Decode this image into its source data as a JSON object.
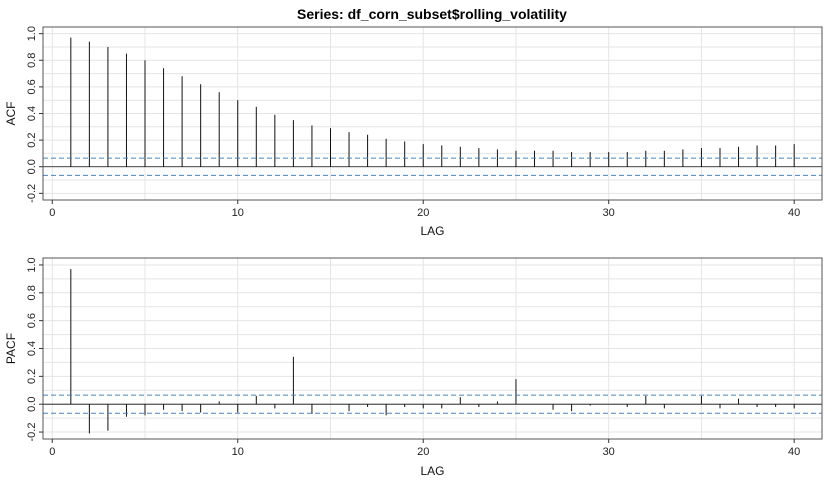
{
  "title": "Series:  df_corn_subset$rolling_volatility",
  "colors": {
    "ci": "#4a84bb",
    "spike": "#111111",
    "grid": "#e4e4e4"
  },
  "chart_data": [
    {
      "type": "bar",
      "id": "acf",
      "xlabel": "LAG",
      "ylabel": "ACF",
      "xlim": [
        -0.5,
        41.5
      ],
      "ylim": [
        -0.25,
        1.05
      ],
      "xticks": [
        0,
        10,
        20,
        30,
        40
      ],
      "yticks": [
        -0.2,
        0.0,
        0.2,
        0.4,
        0.6,
        0.8,
        1.0
      ],
      "ytick_labels": [
        "-0.2",
        "0.0",
        "0.2",
        "0.4",
        "0.6",
        "0.8",
        "1.0"
      ],
      "ci": 0.065,
      "lags": [
        1,
        2,
        3,
        4,
        5,
        6,
        7,
        8,
        9,
        10,
        11,
        12,
        13,
        14,
        15,
        16,
        17,
        18,
        19,
        20,
        21,
        22,
        23,
        24,
        25,
        26,
        27,
        28,
        29,
        30,
        31,
        32,
        33,
        34,
        35,
        36,
        37,
        38,
        39,
        40
      ],
      "values": [
        0.97,
        0.94,
        0.9,
        0.85,
        0.8,
        0.74,
        0.68,
        0.62,
        0.56,
        0.5,
        0.45,
        0.39,
        0.35,
        0.31,
        0.29,
        0.26,
        0.24,
        0.21,
        0.19,
        0.17,
        0.16,
        0.15,
        0.14,
        0.13,
        0.12,
        0.12,
        0.12,
        0.11,
        0.11,
        0.11,
        0.11,
        0.12,
        0.12,
        0.13,
        0.14,
        0.14,
        0.15,
        0.16,
        0.16,
        0.17
      ]
    },
    {
      "type": "bar",
      "id": "pacf",
      "xlabel": "LAG",
      "ylabel": "PACF",
      "xlim": [
        -0.5,
        41.5
      ],
      "ylim": [
        -0.25,
        1.05
      ],
      "xticks": [
        0,
        10,
        20,
        30,
        40
      ],
      "yticks": [
        -0.2,
        0.0,
        0.2,
        0.4,
        0.6,
        0.8,
        1.0
      ],
      "ytick_labels": [
        "-0.2",
        "0.0",
        "0.2",
        "0.4",
        "0.6",
        "0.8",
        "1.0"
      ],
      "ci": 0.065,
      "lags": [
        1,
        2,
        3,
        4,
        5,
        6,
        7,
        8,
        9,
        10,
        11,
        12,
        13,
        14,
        15,
        16,
        17,
        18,
        19,
        20,
        21,
        22,
        23,
        24,
        25,
        26,
        27,
        28,
        29,
        30,
        31,
        32,
        33,
        34,
        35,
        36,
        37,
        38,
        39,
        40
      ],
      "values": [
        0.97,
        -0.21,
        -0.19,
        -0.09,
        -0.08,
        -0.04,
        -0.05,
        -0.06,
        0.02,
        -0.06,
        0.06,
        -0.03,
        0.34,
        -0.07,
        0.0,
        -0.05,
        -0.02,
        -0.08,
        -0.02,
        -0.03,
        -0.03,
        0.05,
        -0.02,
        0.02,
        0.18,
        0.0,
        -0.04,
        -0.05,
        -0.01,
        0.0,
        -0.02,
        0.06,
        -0.03,
        0.0,
        0.06,
        -0.03,
        0.04,
        -0.02,
        -0.02,
        -0.03
      ]
    }
  ]
}
